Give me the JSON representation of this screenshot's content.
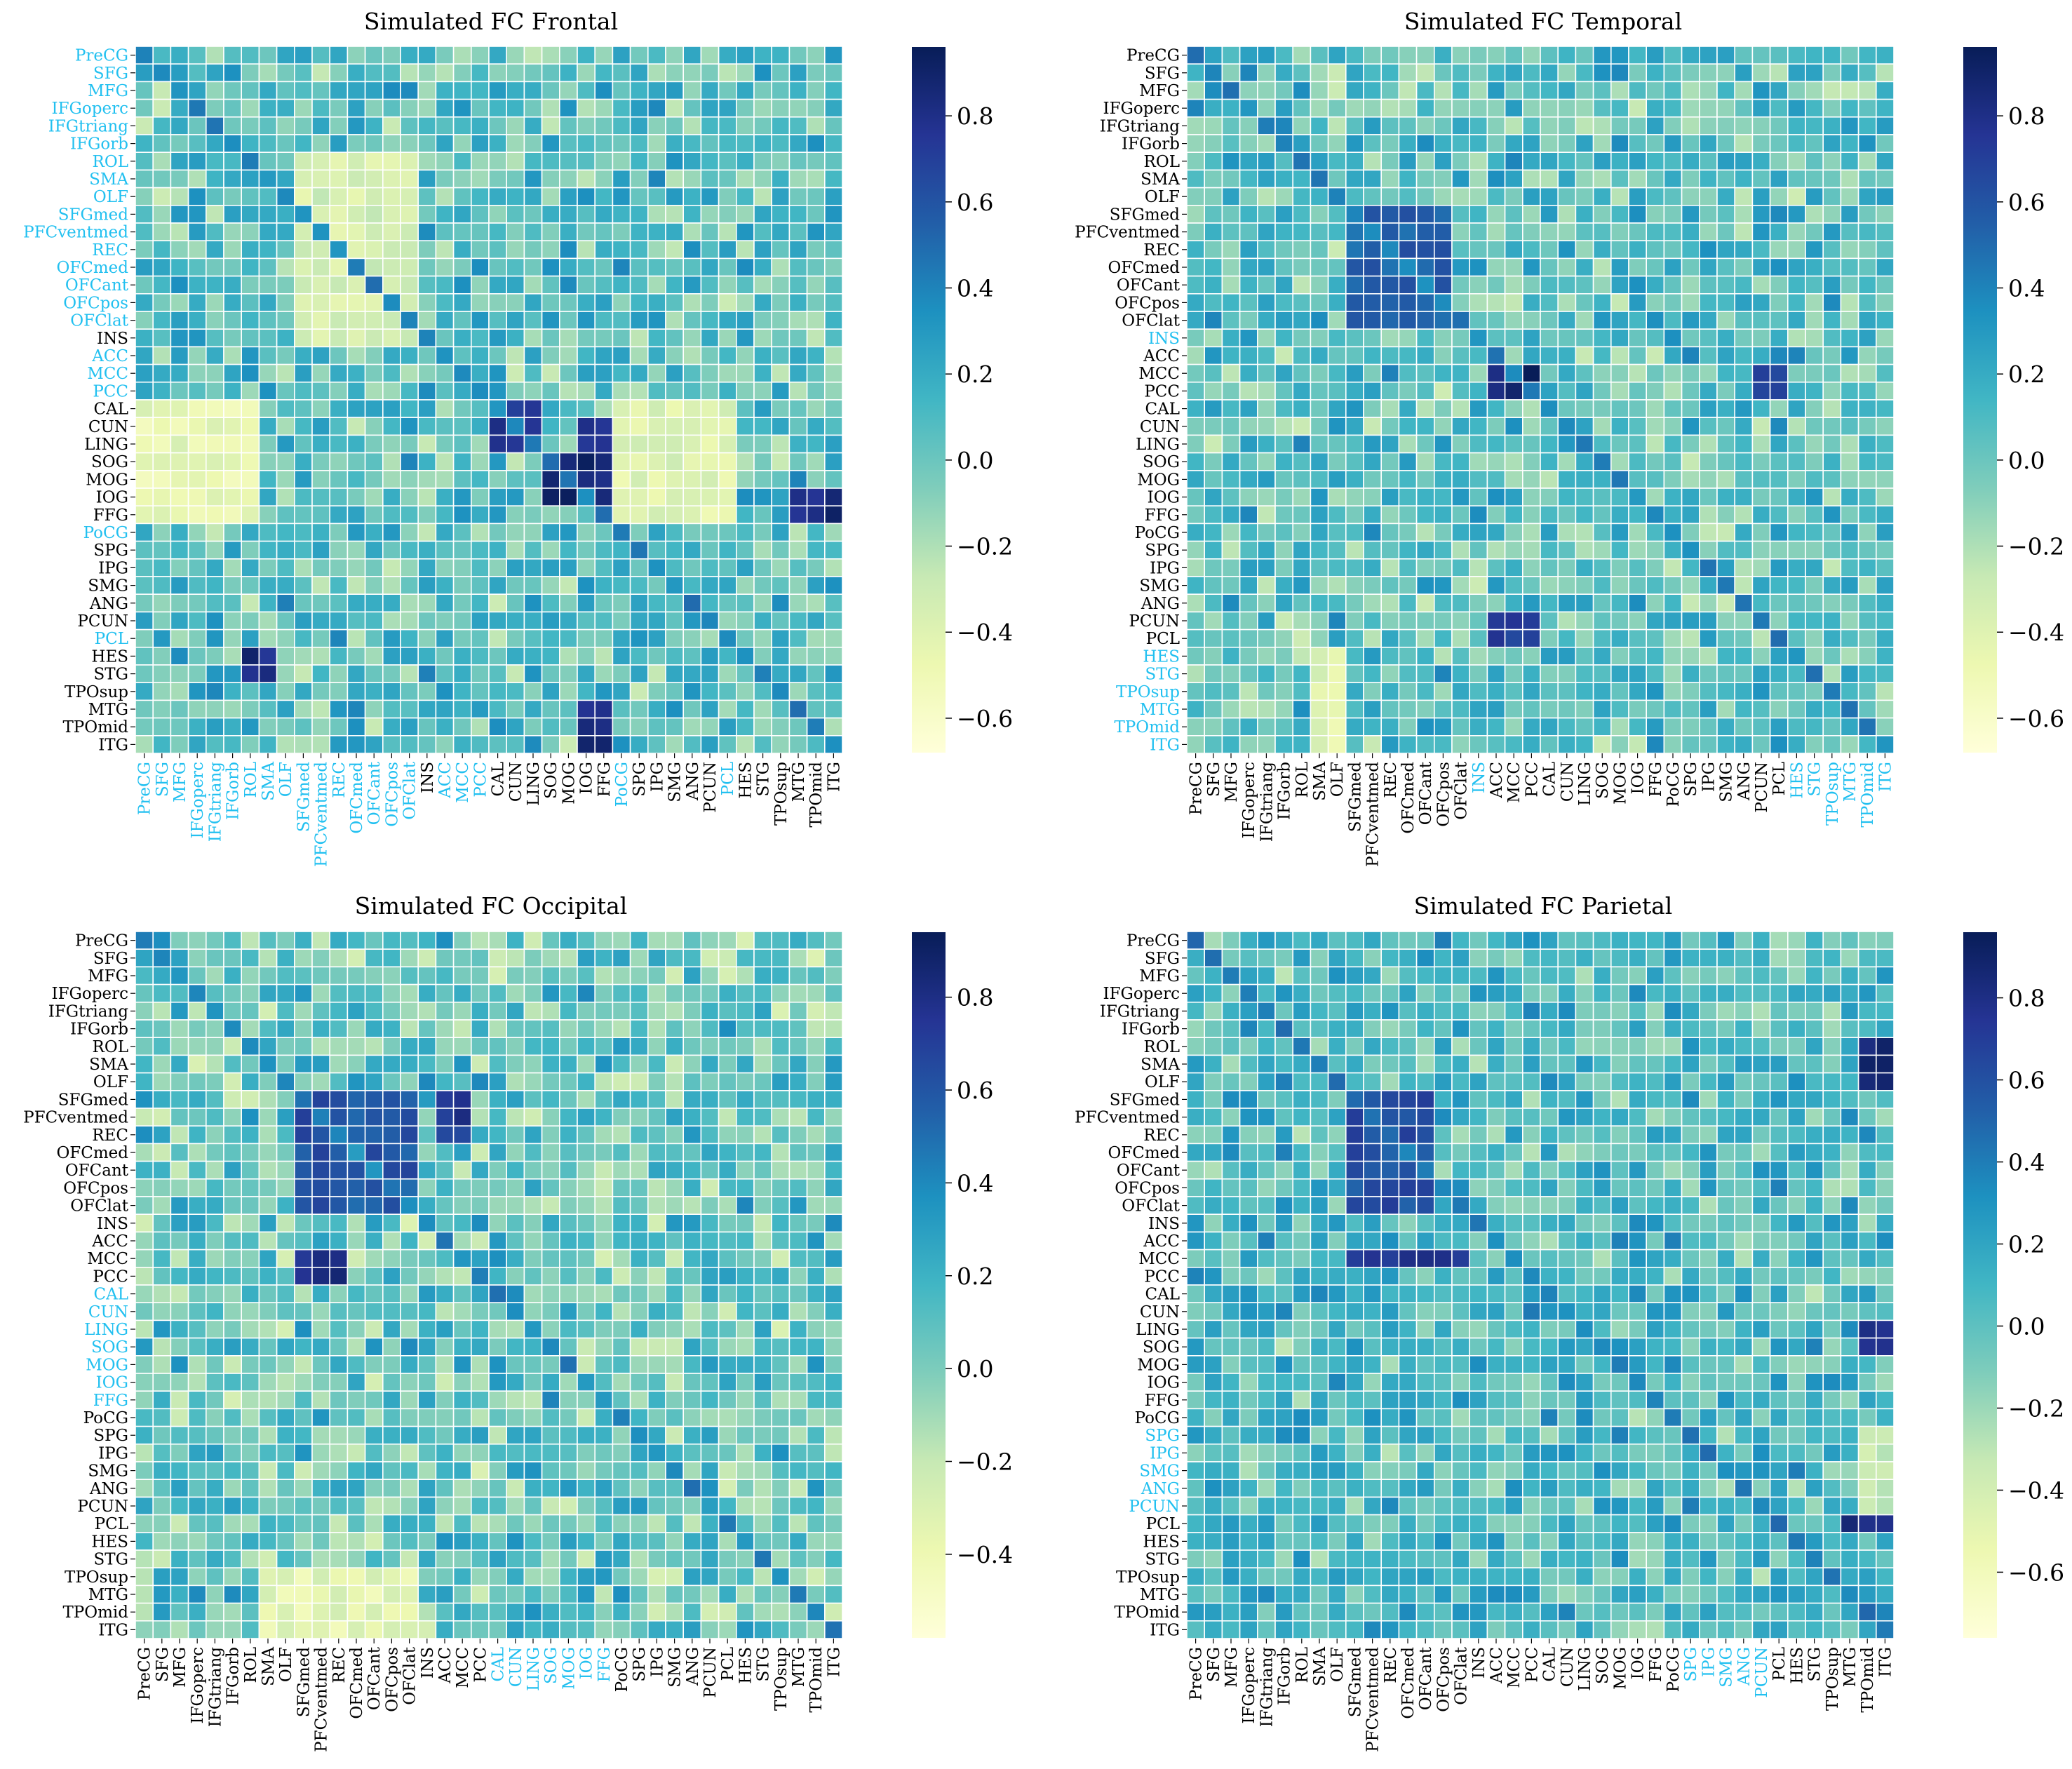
{
  "figure": {
    "colormap": "YlGnBu",
    "colormap_stops": [
      "#ffffd9",
      "#edf8b1",
      "#c7e9b4",
      "#7fcdbb",
      "#41b6c4",
      "#1d91c0",
      "#225ea8",
      "#253494",
      "#081d58"
    ],
    "label_color_default": "#000000",
    "label_color_highlight": "#22c0f0",
    "cell_border_color": "#ffffff"
  },
  "chart_data": [
    {
      "type": "heatmap",
      "title": "Simulated FC Frontal",
      "labels": [
        "PreCG",
        "SFG",
        "MFG",
        "IFGoperc",
        "IFGtriang",
        "IFGorb",
        "ROL",
        "SMA",
        "OLF",
        "SFGmed",
        "PFCventmed",
        "REC",
        "OFCmed",
        "OFCant",
        "OFCpos",
        "OFClat",
        "INS",
        "ACC",
        "MCC",
        "PCC",
        "CAL",
        "CUN",
        "LING",
        "SOG",
        "MOG",
        "IOG",
        "FFG",
        "PoCG",
        "SPG",
        "IPG",
        "SMG",
        "ANG",
        "PCUN",
        "PCL",
        "HES",
        "STG",
        "TPOsup",
        "MTG",
        "TPOmid",
        "ITG"
      ],
      "highlighted_labels": [
        "PreCG",
        "SFG",
        "MFG",
        "IFGoperc",
        "IFGtriang",
        "IFGorb",
        "ROL",
        "SMA",
        "OLF",
        "SFGmed",
        "PFCventmed",
        "REC",
        "OFCmed",
        "OFCant",
        "OFCpos",
        "OFClat",
        "ACC",
        "MCC",
        "PCC",
        "PoCG",
        "PCL"
      ],
      "vmin": -0.68,
      "vmax": 0.96,
      "colorbar_ticks": [
        0.8,
        0.6,
        0.4,
        0.2,
        0.0,
        -0.2,
        -0.4,
        -0.6
      ],
      "colorbar_tick_labels": [
        "0.8",
        "0.6",
        "0.4",
        "0.2",
        "0.0",
        "−0.2",
        "−0.4",
        "−0.6"
      ],
      "strong_blocks": [
        {
          "rows": [
            "CAL",
            "LING"
          ],
          "cols": [
            "CAL",
            "LING"
          ],
          "value": 0.75
        },
        {
          "rows": [
            "SOG",
            "IOG"
          ],
          "cols": [
            "SOG",
            "FFG"
          ],
          "value": 0.85
        },
        {
          "rows": [
            "IOG",
            "FFG"
          ],
          "cols": [
            "MTG",
            "ITG"
          ],
          "value": 0.85
        },
        {
          "rows": [
            "HES",
            "STG"
          ],
          "cols": [
            "ROL",
            "SMA"
          ],
          "value": 0.8
        },
        {
          "rows": [
            "MTG",
            "ITG"
          ],
          "cols": [
            "IOG",
            "FFG"
          ],
          "value": 0.85
        },
        {
          "rows": [
            "CUN",
            "LING"
          ],
          "cols": [
            "IOG",
            "FFG"
          ],
          "value": 0.75
        }
      ],
      "weak_blocks": [
        {
          "rows": [
            "CAL",
            "FFG"
          ],
          "cols": [
            "PreCG",
            "ROL"
          ],
          "value": -0.45
        },
        {
          "rows": [
            "ROL",
            "INS"
          ],
          "cols": [
            "SFGmed",
            "OFClat"
          ],
          "value": -0.35
        },
        {
          "rows": [
            "CAL",
            "FFG"
          ],
          "cols": [
            "PoCG",
            "PCL"
          ],
          "value": -0.4
        }
      ]
    },
    {
      "type": "heatmap",
      "title": "Simulated FC Temporal",
      "labels": [
        "PreCG",
        "SFG",
        "MFG",
        "IFGoperc",
        "IFGtriang",
        "IFGorb",
        "ROL",
        "SMA",
        "OLF",
        "SFGmed",
        "PFCventmed",
        "REC",
        "OFCmed",
        "OFCant",
        "OFCpos",
        "OFClat",
        "INS",
        "ACC",
        "MCC",
        "PCC",
        "CAL",
        "CUN",
        "LING",
        "SOG",
        "MOG",
        "IOG",
        "FFG",
        "PoCG",
        "SPG",
        "IPG",
        "SMG",
        "ANG",
        "PCUN",
        "PCL",
        "HES",
        "STG",
        "TPOsup",
        "MTG",
        "TPOmid",
        "ITG"
      ],
      "highlighted_labels": [
        "INS",
        "HES",
        "STG",
        "TPOsup",
        "MTG",
        "TPOmid",
        "ITG"
      ],
      "vmin": -0.68,
      "vmax": 0.96,
      "colorbar_ticks": [
        0.8,
        0.6,
        0.4,
        0.2,
        0.0,
        -0.2,
        -0.4,
        -0.6
      ],
      "colorbar_tick_labels": [
        "0.8",
        "0.6",
        "0.4",
        "0.2",
        "0.0",
        "−0.2",
        "−0.4",
        "−0.6"
      ],
      "strong_blocks": [
        {
          "rows": [
            "MCC",
            "PCC"
          ],
          "cols": [
            "ACC",
            "PCC"
          ],
          "value": 0.9
        },
        {
          "rows": [
            "MCC",
            "PCC"
          ],
          "cols": [
            "PCUN",
            "PCL"
          ],
          "value": 0.75
        },
        {
          "rows": [
            "PCUN",
            "PCL"
          ],
          "cols": [
            "ACC",
            "PCC"
          ],
          "value": 0.75
        },
        {
          "rows": [
            "SFGmed",
            "OFClat"
          ],
          "cols": [
            "SFGmed",
            "OFCpos"
          ],
          "value": 0.55
        }
      ],
      "weak_blocks": [
        {
          "rows": [
            "HES",
            "ITG"
          ],
          "cols": [
            "SMA",
            "OLF"
          ],
          "value": -0.4
        }
      ]
    },
    {
      "type": "heatmap",
      "title": "Simulated FC Occipital",
      "labels": [
        "PreCG",
        "SFG",
        "MFG",
        "IFGoperc",
        "IFGtriang",
        "IFGorb",
        "ROL",
        "SMA",
        "OLF",
        "SFGmed",
        "PFCventmed",
        "REC",
        "OFCmed",
        "OFCant",
        "OFCpos",
        "OFClat",
        "INS",
        "ACC",
        "MCC",
        "PCC",
        "CAL",
        "CUN",
        "LING",
        "SOG",
        "MOG",
        "IOG",
        "FFG",
        "PoCG",
        "SPG",
        "IPG",
        "SMG",
        "ANG",
        "PCUN",
        "PCL",
        "HES",
        "STG",
        "TPOsup",
        "MTG",
        "TPOmid",
        "ITG"
      ],
      "highlighted_labels": [
        "CAL",
        "CUN",
        "LING",
        "SOG",
        "MOG",
        "IOG",
        "FFG"
      ],
      "vmin": -0.58,
      "vmax": 0.94,
      "colorbar_ticks": [
        0.8,
        0.6,
        0.4,
        0.2,
        0.0,
        -0.2,
        -0.4
      ],
      "colorbar_tick_labels": [
        "0.8",
        "0.6",
        "0.4",
        "0.2",
        "0.0",
        "−0.2",
        "−0.4"
      ],
      "strong_blocks": [
        {
          "rows": [
            "SFGmed",
            "OFClat"
          ],
          "cols": [
            "SFGmed",
            "OFClat"
          ],
          "value": 0.6
        },
        {
          "rows": [
            "MCC",
            "PCC"
          ],
          "cols": [
            "SFGmed",
            "REC"
          ],
          "value": 0.8
        },
        {
          "rows": [
            "SFGmed",
            "REC"
          ],
          "cols": [
            "ACC",
            "MCC"
          ],
          "value": 0.75
        }
      ],
      "weak_blocks": [
        {
          "rows": [
            "TPOsup",
            "ITG"
          ],
          "cols": [
            "SMA",
            "OFClat"
          ],
          "value": -0.35
        }
      ]
    },
    {
      "type": "heatmap",
      "title": "Simulated FC Parietal",
      "labels": [
        "PreCG",
        "SFG",
        "MFG",
        "IFGoperc",
        "IFGtriang",
        "IFGorb",
        "ROL",
        "SMA",
        "OLF",
        "SFGmed",
        "PFCventmed",
        "REC",
        "OFCmed",
        "OFCant",
        "OFCpos",
        "OFClat",
        "INS",
        "ACC",
        "MCC",
        "PCC",
        "CAL",
        "CUN",
        "LING",
        "SOG",
        "MOG",
        "IOG",
        "FFG",
        "PoCG",
        "SPG",
        "IPG",
        "SMG",
        "ANG",
        "PCUN",
        "PCL",
        "HES",
        "STG",
        "TPOsup",
        "MTG",
        "TPOmid",
        "ITG"
      ],
      "highlighted_labels": [
        "SPG",
        "IPG",
        "SMG",
        "ANG",
        "PCUN"
      ],
      "vmin": -0.76,
      "vmax": 0.96,
      "colorbar_ticks": [
        0.8,
        0.6,
        0.4,
        0.2,
        0.0,
        -0.2,
        -0.4,
        -0.6
      ],
      "colorbar_tick_labels": [
        "0.8",
        "0.6",
        "0.4",
        "0.2",
        "0.0",
        "−0.2",
        "−0.4",
        "−0.6"
      ],
      "strong_blocks": [
        {
          "rows": [
            "SFGmed",
            "OFClat"
          ],
          "cols": [
            "SFGmed",
            "OFCant"
          ],
          "value": 0.6
        },
        {
          "rows": [
            "MCC",
            "MCC"
          ],
          "cols": [
            "SFGmed",
            "OFClat"
          ],
          "value": 0.75
        },
        {
          "rows": [
            "ROL",
            "OLF"
          ],
          "cols": [
            "TPOmid",
            "ITG"
          ],
          "value": 0.85
        },
        {
          "rows": [
            "LING",
            "SOG"
          ],
          "cols": [
            "TPOmid",
            "ITG"
          ],
          "value": 0.85
        },
        {
          "rows": [
            "PCL",
            "PCL"
          ],
          "cols": [
            "MTG",
            "ITG"
          ],
          "value": 0.85
        }
      ],
      "weak_blocks": [
        {
          "rows": [
            "SPG",
            "PCUN"
          ],
          "cols": [
            "TPOmid",
            "ITG"
          ],
          "value": -0.35
        }
      ]
    }
  ]
}
